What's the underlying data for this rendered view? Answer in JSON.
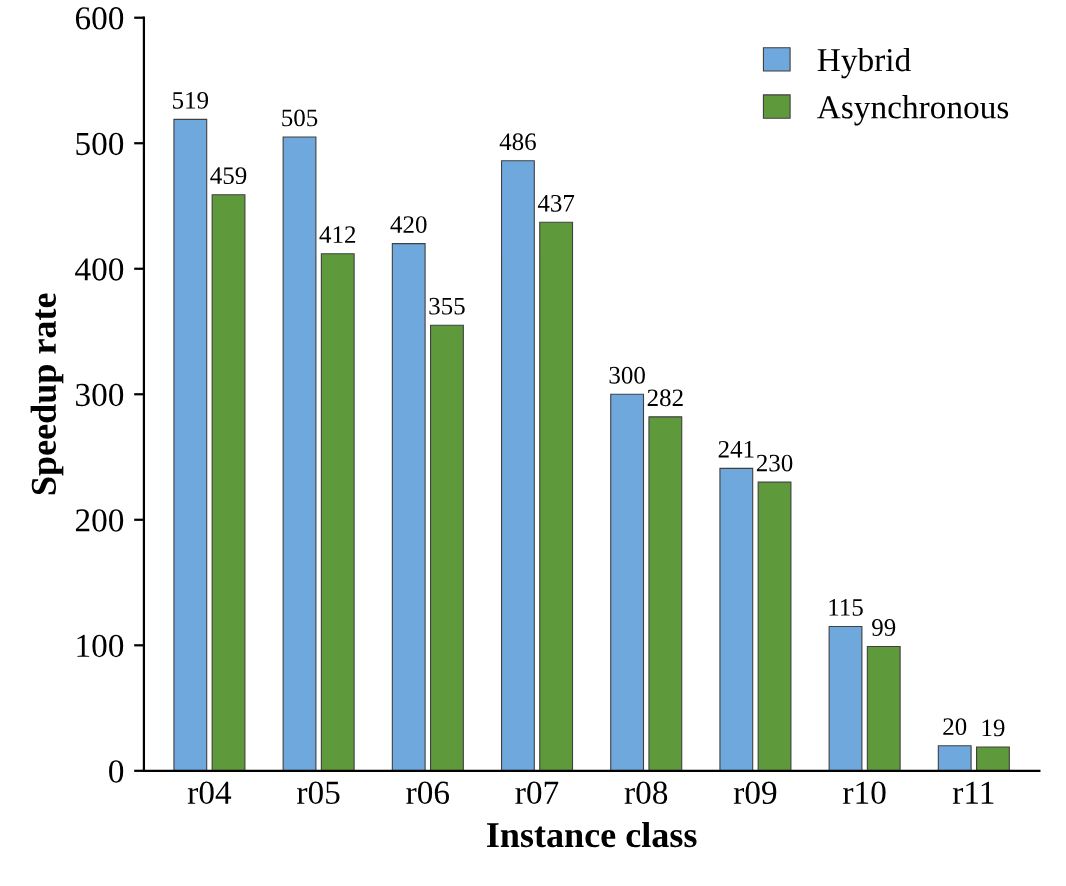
{
  "chart_data": {
    "type": "bar",
    "xlabel": "Instance class",
    "ylabel": "Speedup rate",
    "categories": [
      "r04",
      "r05",
      "r06",
      "r07",
      "r08",
      "r09",
      "r10",
      "r11"
    ],
    "series": [
      {
        "name": "Hybrid",
        "color": "#6fa8dc",
        "values": [
          519,
          505,
          420,
          486,
          300,
          241,
          115,
          20
        ]
      },
      {
        "name": "Asynchronous",
        "color": "#5e9a3c",
        "values": [
          459,
          412,
          355,
          437,
          282,
          230,
          99,
          19
        ]
      }
    ],
    "ylim": [
      0,
      600
    ],
    "yticks": [
      0,
      100,
      200,
      300,
      400,
      500,
      600
    ],
    "grid": false,
    "legend": "top right",
    "data_labels": true
  }
}
